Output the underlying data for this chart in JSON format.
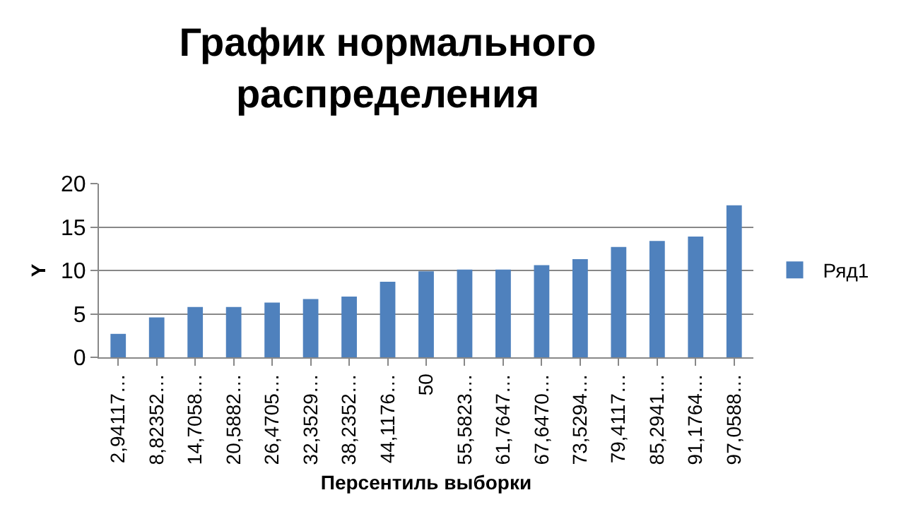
{
  "chart_data": {
    "type": "bar",
    "title": "График нормального распределения",
    "xlabel": "Персентиль выборки",
    "ylabel": "Y",
    "categories": [
      "2,94117…",
      "8,82352…",
      "14,7058…",
      "20,5882…",
      "26,4705…",
      "32,3529…",
      "38,2352…",
      "44,1176…",
      "50",
      "55,5823…",
      "61,7647…",
      "67,6470…",
      "73,5294…",
      "79,4117…",
      "85,2941…",
      "91,1764…",
      "97,0588…"
    ],
    "series": [
      {
        "name": "Ряд1",
        "color": "#4f81bd",
        "values": [
          2.7,
          4.6,
          5.8,
          5.8,
          6.3,
          6.7,
          7.0,
          8.7,
          9.9,
          10.1,
          10.1,
          10.6,
          11.3,
          12.7,
          13.4,
          13.9,
          17.5
        ]
      }
    ],
    "ylim": [
      0,
      20
    ],
    "yticks": [
      0,
      5,
      10,
      15,
      20
    ],
    "grid": "y",
    "legend": "right"
  }
}
